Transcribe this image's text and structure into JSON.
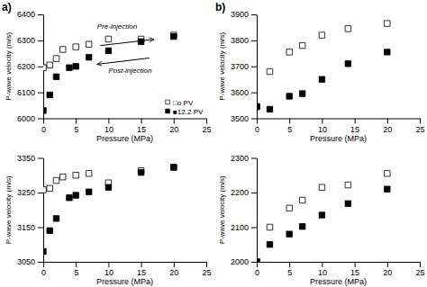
{
  "chart_data": [
    {
      "type": "scatter",
      "title": "a)",
      "x_label": "Pressure (MPa)",
      "y_label": "P-wave velocity (m/s)",
      "marker": "square",
      "legend": "lower right",
      "xlim": [
        0,
        25
      ],
      "ylim": [
        6000,
        6400
      ],
      "xticks": [
        0,
        5,
        10,
        15,
        20,
        25
      ],
      "yticks": [
        6000,
        6100,
        6200,
        6300,
        6400
      ],
      "annotations": [
        "Pre-injection",
        "Post-injection"
      ],
      "series": [
        {
          "name": "□o PV",
          "color": "white",
          "x": [
            0,
            1,
            2,
            3,
            5,
            7,
            10,
            15,
            20
          ],
          "values": [
            6195,
            6205,
            6230,
            6265,
            6275,
            6285,
            6305,
            6305,
            6320
          ]
        },
        {
          "name": "■12.2 PV",
          "color": "black",
          "x": [
            0,
            1,
            2,
            4,
            5,
            7,
            10,
            15,
            20
          ],
          "values": [
            6030,
            6090,
            6160,
            6195,
            6200,
            6235,
            6260,
            6295,
            6315
          ]
        }
      ]
    },
    {
      "type": "scatter",
      "title": "b)",
      "x_label": "Pressure (MPa)",
      "y_label": "P-wave velocity (m/s)",
      "marker": "square",
      "xlim": [
        0,
        25
      ],
      "ylim": [
        3500,
        3900
      ],
      "xticks": [
        0,
        5,
        10,
        15,
        20,
        25
      ],
      "yticks": [
        3500,
        3600,
        3700,
        3800,
        3900
      ],
      "series": [
        {
          "color": "white",
          "x": [
            0,
            2,
            5,
            7,
            10,
            14,
            20
          ],
          "values": [
            3545,
            3680,
            3755,
            3780,
            3820,
            3845,
            3865
          ]
        },
        {
          "color": "black",
          "x": [
            0,
            2,
            5,
            7,
            10,
            14,
            20
          ],
          "values": [
            3545,
            3535,
            3585,
            3595,
            3650,
            3710,
            3755
          ]
        }
      ]
    },
    {
      "type": "scatter",
      "x_label": "Pressure (MPa)",
      "y_label": "P-wave velocity (m/s)",
      "marker": "square",
      "xlim": [
        0,
        25
      ],
      "ylim": [
        3050,
        3350
      ],
      "xticks": [
        0,
        5,
        10,
        15,
        20,
        25
      ],
      "yticks": [
        3050,
        3150,
        3250,
        3350
      ],
      "series": [
        {
          "color": "white",
          "x": [
            0,
            1,
            2,
            3,
            5,
            7,
            10,
            15,
            20
          ],
          "values": [
            3258,
            3262,
            3285,
            3295,
            3300,
            3305,
            3278,
            3313,
            3323
          ]
        },
        {
          "color": "black",
          "x": [
            0,
            1,
            2,
            4,
            5,
            7,
            10,
            15,
            20
          ],
          "values": [
            3080,
            3140,
            3175,
            3235,
            3242,
            3252,
            3265,
            3308,
            3323
          ]
        }
      ]
    },
    {
      "type": "scatter",
      "x_label": "Pressure (MPa)",
      "y_label": "P-wave velocity (m/s)",
      "marker": "square",
      "xlim": [
        0,
        25
      ],
      "ylim": [
        2000,
        2300
      ],
      "xticks": [
        0,
        5,
        10,
        15,
        20,
        25
      ],
      "yticks": [
        2000,
        2100,
        2200,
        2300
      ],
      "series": [
        {
          "color": "white",
          "x": [
            0,
            2,
            5,
            7,
            10,
            14,
            20
          ],
          "values": [
            2000,
            2100,
            2155,
            2178,
            2215,
            2222,
            2255
          ]
        },
        {
          "color": "black",
          "x": [
            0,
            2,
            5,
            7,
            10,
            14,
            20
          ],
          "values": [
            2000,
            2050,
            2080,
            2102,
            2135,
            2168,
            2210
          ]
        }
      ]
    }
  ]
}
